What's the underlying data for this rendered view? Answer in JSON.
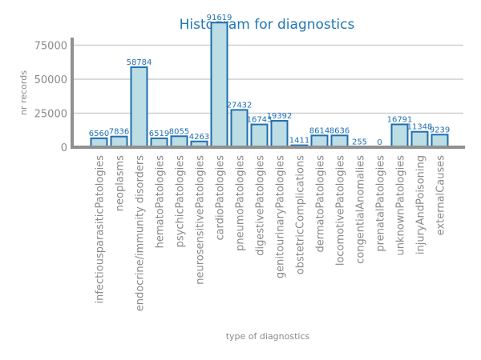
{
  "chart_data": {
    "type": "bar",
    "title": "Histogram for diagnostics",
    "xlabel": "type of diagnostics",
    "ylabel": "nr records",
    "ylim": [
      0,
      100000
    ],
    "yticks": [
      0,
      25000,
      50000,
      75000
    ],
    "grid": true,
    "categories": [
      "infectiousparasiticPatologies",
      "neoplasms",
      "endocrine/immunity disorders",
      "hematoPatologies",
      "psychicPatologies",
      "neurosensitivePatologies",
      "cardioPatologies",
      "pneumoPatologies",
      "digestivePatologies",
      "genitourinaryPatologies",
      "obstetricComplications",
      "dermatoPatologies",
      "locomotivePatologies",
      "congentialAnomalies",
      "prenatalPatologies",
      "unknownPatologies",
      "injuryAndPoisoning",
      "externalCauses"
    ],
    "values": [
      6560,
      7836,
      58784,
      6519,
      8055,
      4263,
      91619,
      27432,
      16743,
      19392,
      1411,
      8614,
      8636,
      255,
      0,
      16791,
      11348,
      9239
    ],
    "colors": {
      "bar_fill": "#bcdde3",
      "bar_edge": "#1f6fb2",
      "title": "#1f77b4",
      "label": "#1f6fb2"
    }
  }
}
